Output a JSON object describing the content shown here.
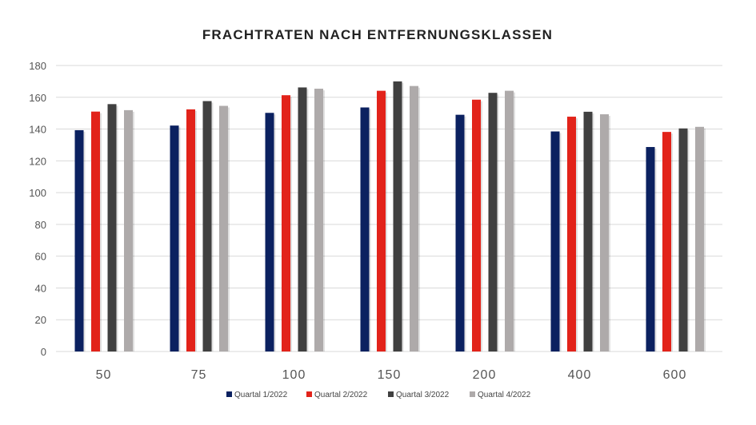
{
  "chart_data": {
    "type": "bar",
    "title": "FRACHTRATEN NACH ENTFERNUNGSKLASSEN",
    "xlabel": "",
    "ylabel": "",
    "ylim": [
      0,
      180
    ],
    "yticks": [
      0,
      20,
      40,
      60,
      80,
      100,
      120,
      140,
      160,
      180
    ],
    "grid": true,
    "legend_placement": "bottom",
    "categories": [
      "50",
      "75",
      "100",
      "150",
      "200",
      "400",
      "600"
    ],
    "series": [
      {
        "name": "Quartal 1/2022",
        "color": "#0b2160",
        "values": [
          139.3,
          142.2,
          150.2,
          153.6,
          149,
          138.5,
          128.7
        ]
      },
      {
        "name": "Quartal 2/2022",
        "color": "#e2231a",
        "values": [
          151,
          152.4,
          161.3,
          164.1,
          158.5,
          147.8,
          138.2
        ]
      },
      {
        "name": "Quartal 3/2022",
        "color": "#404040",
        "values": [
          155.7,
          157.6,
          166.2,
          170,
          162.8,
          150.9,
          140.4
        ]
      },
      {
        "name": "Quartal 4/2022",
        "color": "#aeaaaa",
        "values": [
          151.9,
          154.6,
          165.4,
          167.1,
          164.1,
          149.3,
          141.4
        ]
      }
    ]
  }
}
